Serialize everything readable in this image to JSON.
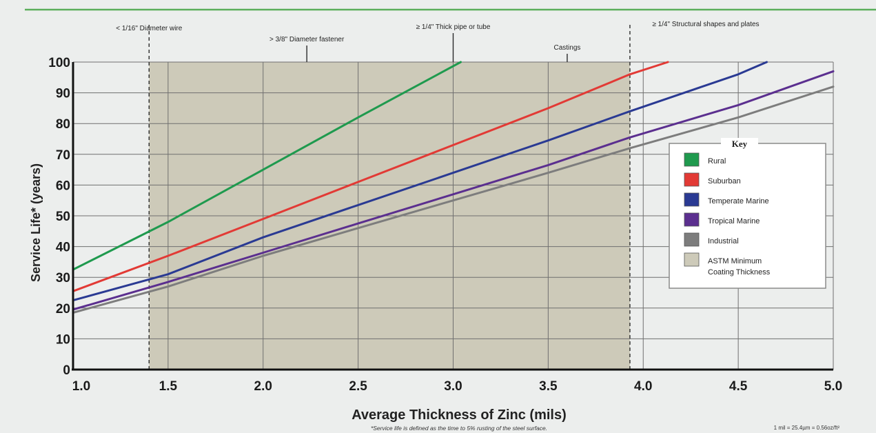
{
  "chart_data": {
    "type": "line",
    "title": "",
    "xlabel": "Average Thickness of Zinc (mils)",
    "ylabel": "Service Life* (years)",
    "xlim": [
      1.0,
      5.0
    ],
    "ylim": [
      0,
      100
    ],
    "x_ticks": [
      "1.0",
      "1.5",
      "2.0",
      "2.5",
      "3.0",
      "3.5",
      "4.0",
      "4.5",
      "5.0"
    ],
    "y_ticks": [
      "0",
      "10",
      "20",
      "30",
      "40",
      "50",
      "60",
      "70",
      "80",
      "90",
      "100"
    ],
    "grid": true,
    "legend": {
      "title": "Key",
      "placement": "right",
      "entries": [
        "Rural",
        "Suburban",
        "Temperate Marine",
        "Tropical Marine",
        "Industrial",
        "ASTM Minimum Coating Thickness"
      ]
    },
    "shaded_band": {
      "name": "ASTM Minimum Coating Thickness",
      "x_range": [
        1.4,
        3.93
      ],
      "color": "#cdcab9"
    },
    "series": [
      {
        "name": "Rural",
        "color": "#1f9a4e",
        "points": [
          [
            1.0,
            32.5
          ],
          [
            1.5,
            48
          ],
          [
            2.0,
            65
          ],
          [
            2.5,
            82
          ],
          [
            3.04,
            100
          ]
        ]
      },
      {
        "name": "Suburban",
        "color": "#e23a35",
        "points": [
          [
            1.0,
            25.5
          ],
          [
            1.5,
            37
          ],
          [
            2.0,
            49
          ],
          [
            2.5,
            61
          ],
          [
            3.0,
            73
          ],
          [
            3.5,
            85
          ],
          [
            3.93,
            96
          ],
          [
            4.13,
            100
          ]
        ]
      },
      {
        "name": "Temperate Marine",
        "color": "#2a3a93",
        "points": [
          [
            1.0,
            22.5
          ],
          [
            1.5,
            31
          ],
          [
            2.0,
            43
          ],
          [
            2.5,
            53.5
          ],
          [
            3.0,
            64
          ],
          [
            3.5,
            74.5
          ],
          [
            3.93,
            84
          ],
          [
            4.5,
            96
          ],
          [
            4.65,
            100
          ]
        ]
      },
      {
        "name": "Tropical Marine",
        "color": "#5b2f8f",
        "points": [
          [
            1.0,
            19.5
          ],
          [
            1.5,
            28.5
          ],
          [
            2.0,
            38
          ],
          [
            2.5,
            47.5
          ],
          [
            3.0,
            57
          ],
          [
            3.5,
            66.5
          ],
          [
            3.93,
            75.5
          ],
          [
            4.5,
            86
          ],
          [
            5.0,
            97
          ]
        ]
      },
      {
        "name": "Industrial",
        "color": "#7d7d7d",
        "points": [
          [
            1.0,
            18.5
          ],
          [
            1.5,
            27
          ],
          [
            2.0,
            37
          ],
          [
            2.5,
            46
          ],
          [
            3.0,
            55
          ],
          [
            3.5,
            64
          ],
          [
            3.93,
            72
          ],
          [
            4.5,
            82
          ],
          [
            5.0,
            92
          ]
        ]
      }
    ],
    "annotations": [
      {
        "label": "< 1/16\" Diameter wire",
        "x": 1.4,
        "style": "dashed"
      },
      {
        "label": "> 3/8\" Diameter fastener",
        "x": 2.23,
        "style": "solid"
      },
      {
        "label": "≥ 1/4\" Thick pipe or tube",
        "x": 3.0,
        "style": "solid"
      },
      {
        "label": "≥ 1/4\" Structural shapes and plates",
        "x": 3.93,
        "style": "dashed"
      },
      {
        "label": "Castings",
        "x": 3.6,
        "style": "solid"
      }
    ],
    "footnote": "*Service life is defined as the time to 5% rusting of the steel surface.",
    "unit_note": "1 mil = 25.4µm = 0.56oz/ft²"
  }
}
